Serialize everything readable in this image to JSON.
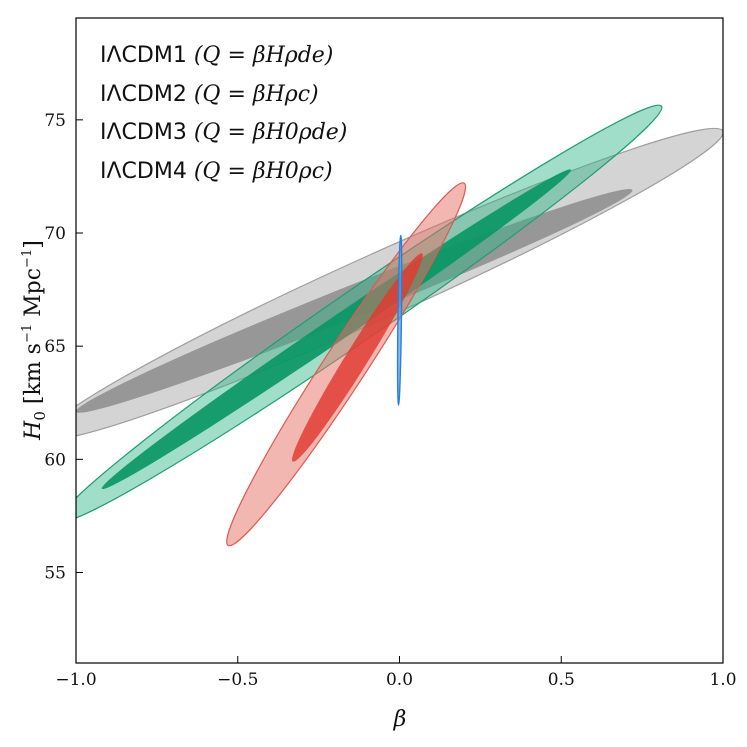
{
  "chart_data": {
    "type": "contour",
    "xlabel": "β",
    "ylabel": "H0 [km s^-1 Mpc^-1]",
    "xlim": [
      -1.0,
      1.0
    ],
    "ylim": [
      51.0,
      79.5
    ],
    "xticks": [
      -1.0,
      -0.5,
      0.0,
      0.5,
      1.0
    ],
    "xtick_labels": [
      "−1.0",
      "−0.5",
      "0.0",
      "0.5",
      "1.0"
    ],
    "yticks": [
      55,
      60,
      65,
      70,
      75
    ],
    "ytick_labels": [
      "55",
      "60",
      "65",
      "70",
      "75"
    ],
    "grid": false,
    "legend_position": "top-left",
    "series": [
      {
        "name": "IΛCDM1",
        "relation": "(Q = βHρde)",
        "color": "#0e9a68",
        "center": [
          -0.1,
          66.5
        ],
        "ellipse_1sigma": [
          [
            -0.92,
            58.7
          ],
          [
            0.53,
            72.8
          ]
        ],
        "ellipse_2sigma": [
          [
            -1.05,
            57.3
          ],
          [
            0.81,
            75.6
          ]
        ]
      },
      {
        "name": "IΛCDM2",
        "relation": "(Q = βHρc)",
        "color": "#1f77d8",
        "center": [
          0.0,
          66.2
        ],
        "ellipse_1sigma": [
          [
            -0.003,
            62.4
          ],
          [
            0.004,
            69.9
          ]
        ],
        "ellipse_2sigma": [
          [
            -0.003,
            62.4
          ],
          [
            0.004,
            69.9
          ]
        ]
      },
      {
        "name": "IΛCDM3",
        "relation": "(Q = βH0ρde)",
        "color": "#8c8c8c",
        "center": [
          -0.05,
          66.5
        ],
        "ellipse_1sigma": [
          [
            -1.0,
            62.1
          ],
          [
            0.72,
            71.9
          ]
        ],
        "ellipse_2sigma": [
          [
            -1.1,
            61.0
          ],
          [
            1.0,
            74.5
          ]
        ]
      },
      {
        "name": "IΛCDM4",
        "relation": "(Q = βH0ρc)",
        "color": "#d9362b",
        "center": [
          -0.12,
          64.3
        ],
        "ellipse_1sigma": [
          [
            -0.33,
            59.9
          ],
          [
            0.07,
            69.1
          ]
        ],
        "ellipse_2sigma": [
          [
            -0.53,
            56.2
          ],
          [
            0.2,
            72.2
          ]
        ]
      }
    ]
  }
}
